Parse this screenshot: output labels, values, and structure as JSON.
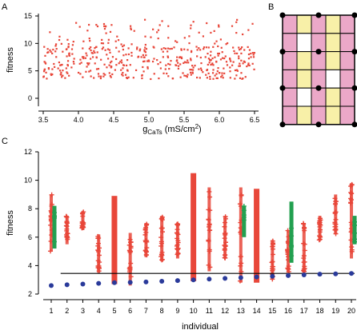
{
  "panels": {
    "a": "A",
    "b": "B",
    "c": "C"
  },
  "chart_data": [
    {
      "type": "scatter",
      "panel": "A",
      "xlabel_main": "g",
      "xlabel_sub": "CaTs",
      "xlabel_unit": " (mS/cm",
      "xlabel_sup": "2",
      "xlabel_close": ")",
      "ylabel": "fitness",
      "xlim": [
        3.5,
        6.5
      ],
      "ylim": [
        0,
        15
      ],
      "xticks": [
        "3.5",
        "4.0",
        "4.5",
        "5.0",
        "5.5",
        "6.0",
        "6.5"
      ],
      "yticks": [
        "0",
        "5",
        "10",
        "15"
      ],
      "color": "#e8473a",
      "n_points": 480,
      "cluster_range": [
        3.5,
        9.5
      ],
      "sparse_range": [
        9.5,
        14.5
      ]
    },
    {
      "type": "grid",
      "panel": "B",
      "rows": 6,
      "cols": 5,
      "cells": [
        [
          "pink",
          "yellow",
          "pink",
          "yellow",
          "pink"
        ],
        [
          "pink",
          "white",
          "pink",
          "yellow",
          "pink"
        ],
        [
          "pink",
          "yellow",
          "pink",
          "yellow",
          "pink"
        ],
        [
          "pink",
          "yellow",
          "pink",
          "white",
          "pink"
        ],
        [
          "pink",
          "white",
          "pink",
          "yellow",
          "pink"
        ],
        [
          "pink",
          "yellow",
          "pink",
          "yellow",
          "pink"
        ]
      ],
      "colors": {
        "pink": "#eba8c8",
        "yellow": "#f8f0a8",
        "white": "#ffffff"
      }
    },
    {
      "type": "scatter",
      "panel": "C",
      "xlabel": "individual",
      "ylabel": "fitness",
      "xlim": [
        0.5,
        20.5
      ],
      "ylim": [
        2,
        12
      ],
      "xticks": [
        "1",
        "2",
        "3",
        "4",
        "5",
        "6",
        "7",
        "8",
        "9",
        "10",
        "11",
        "12",
        "13",
        "14",
        "15",
        "16",
        "17",
        "18",
        "19",
        "20"
      ],
      "yticks": [
        "2",
        "4",
        "6",
        "8",
        "10",
        "12"
      ],
      "threshold": 3.45,
      "colors": {
        "red": "#e8473a",
        "green": "#22a050",
        "blue": "#2a3a9a",
        "line": "#000000"
      },
      "blue_values": [
        2.6,
        2.65,
        2.7,
        2.75,
        2.8,
        2.82,
        2.85,
        2.9,
        2.95,
        3.0,
        3.05,
        3.1,
        3.15,
        3.2,
        3.25,
        3.3,
        3.35,
        3.4,
        3.42,
        3.45
      ],
      "red_ranges": [
        [
          5.0,
          9.0
        ],
        [
          5.5,
          7.5
        ],
        [
          6.5,
          7.8
        ],
        [
          3.5,
          6.2
        ],
        [
          2.7,
          8.9
        ],
        [
          2.6,
          6.3
        ],
        [
          4.6,
          7.0
        ],
        [
          4.3,
          7.5
        ],
        [
          4.5,
          7.0
        ],
        [
          2.9,
          10.5
        ],
        [
          3.6,
          9.5
        ],
        [
          4.5,
          7.5
        ],
        [
          2.8,
          9.5
        ],
        [
          2.8,
          9.4
        ],
        [
          3.0,
          5.8
        ],
        [
          3.5,
          6.5
        ],
        [
          3.5,
          7.0
        ],
        [
          5.8,
          7.5
        ],
        [
          6.2,
          9.0
        ],
        [
          4.5,
          9.8
        ]
      ],
      "green_ranges": [
        [
          5.2,
          8.2
        ],
        null,
        null,
        null,
        null,
        null,
        null,
        null,
        null,
        null,
        null,
        null,
        [
          6.0,
          8.2
        ],
        null,
        null,
        [
          4.2,
          8.5
        ],
        null,
        null,
        null,
        [
          5.5,
          7.5
        ]
      ],
      "bar_indices": [
        5,
        10,
        14
      ]
    }
  ]
}
